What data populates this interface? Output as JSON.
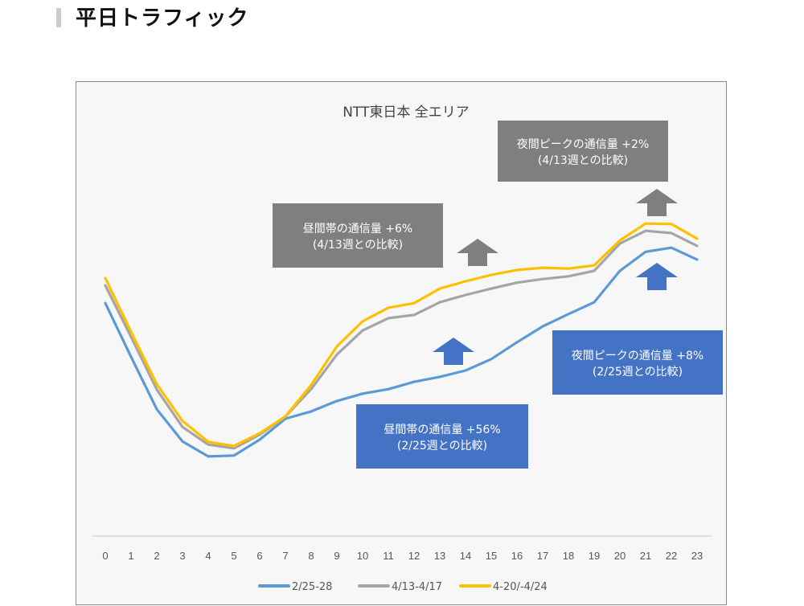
{
  "page": {
    "heading": "平日トラフィック"
  },
  "colors": {
    "blue_series": "#5b9bd5",
    "gray_series": "#a5a5a5",
    "yellow_series": "#ffc000",
    "gray_box": "#7f7f7f",
    "blue_box": "#4472c4",
    "blue_arrow": "#4472c4",
    "gray_arrow": "#7f7f7f"
  },
  "chart_data": {
    "type": "line",
    "title": "NTT東日本 全エリア",
    "xlabel": "",
    "ylabel": "",
    "y_units": "relative traffic index (no y-axis shown; values estimated on a 0–100 scale from plot baseline)",
    "ylim": [
      0,
      100
    ],
    "grid": false,
    "legend_position": "bottom",
    "categories": [
      "0",
      "1",
      "2",
      "3",
      "4",
      "5",
      "6",
      "7",
      "8",
      "9",
      "10",
      "11",
      "12",
      "13",
      "14",
      "15",
      "16",
      "17",
      "18",
      "19",
      "20",
      "21",
      "22",
      "23"
    ],
    "series": [
      {
        "name": "2/25-28",
        "color": "#5b9bd5",
        "values": [
          51.2,
          39.4,
          27.9,
          20.8,
          17.5,
          17.7,
          21.2,
          25.8,
          27.4,
          29.7,
          31.3,
          32.3,
          33.9,
          35.0,
          36.4,
          38.9,
          42.6,
          46.1,
          48.8,
          51.4,
          58.3,
          62.5,
          63.4,
          60.8
        ]
      },
      {
        "name": "4/13-4/17",
        "color": "#a5a5a5",
        "values": [
          55.1,
          43.8,
          32.2,
          24.0,
          20.1,
          19.3,
          22.3,
          26.3,
          32.3,
          39.9,
          45.2,
          47.9,
          48.6,
          51.4,
          53.0,
          54.4,
          55.7,
          56.5,
          57.1,
          58.3,
          64.3,
          67.1,
          66.6,
          63.8
        ]
      },
      {
        "name": "4-20/-4/24",
        "color": "#ffc000",
        "values": [
          56.7,
          44.9,
          33.4,
          25.3,
          20.7,
          19.8,
          22.6,
          26.3,
          33.2,
          41.7,
          47.2,
          50.2,
          51.2,
          54.4,
          56.0,
          57.4,
          58.5,
          59.0,
          58.8,
          59.5,
          65.0,
          68.7,
          68.6,
          65.4
        ]
      }
    ],
    "annotations": [
      {
        "id": "night-peak-vs-0413",
        "style": "gray",
        "line1": "夜間ピークの通信量 +2%",
        "line2": "(4/13週との比較)",
        "arrow": "up-gray"
      },
      {
        "id": "daytime-vs-0413",
        "style": "gray",
        "line1": "昼間帯の通信量 +6%",
        "line2": "(4/13週との比較)",
        "arrow": "up-gray"
      },
      {
        "id": "night-peak-vs-0225",
        "style": "blue",
        "line1": "夜間ピークの通信量 +8%",
        "line2": "(2/25週との比較)",
        "arrow": "up-blue"
      },
      {
        "id": "daytime-vs-0225",
        "style": "blue",
        "line1": "昼間帯の通信量 +56%",
        "line2": "(2/25週との比較)",
        "arrow": "up-blue"
      }
    ]
  }
}
